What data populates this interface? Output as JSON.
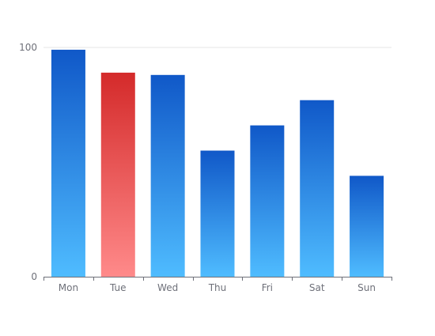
{
  "chart_data": {
    "type": "bar",
    "categories": [
      "Mon",
      "Tue",
      "Wed",
      "Thu",
      "Fri",
      "Sat",
      "Sun"
    ],
    "values": [
      99,
      89,
      88,
      55,
      66,
      77,
      44
    ],
    "ylim": [
      0,
      100
    ],
    "yticks": [
      "0",
      "100"
    ],
    "highlight_index": 1,
    "colors": {
      "bar_top": "#1058c8",
      "bar_bottom": "#4fbcff",
      "highlight_top": "#d42a2a",
      "highlight_bottom": "#ff8a8a",
      "axis": "#6e7079",
      "grid": "#e6e6e6"
    }
  }
}
